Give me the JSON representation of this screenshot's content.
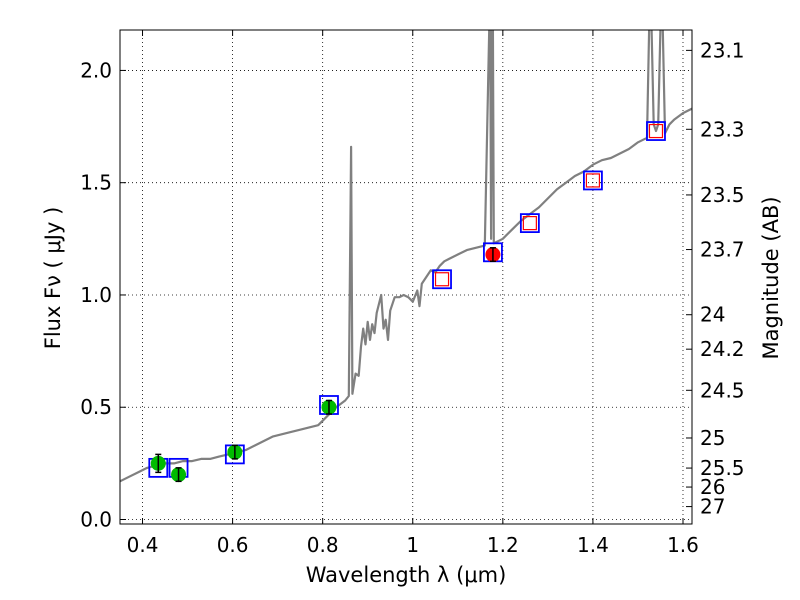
{
  "chart_data": {
    "type": "line",
    "title": "",
    "xlabel": "Wavelength  λ (μm)",
    "ylabel": "Flux  Fν  ( μJy )",
    "ylabel_right": "Magnitude (AB)",
    "xlim": [
      0.35,
      1.62
    ],
    "ylim": [
      -0.02,
      2.18
    ],
    "grid": true,
    "x_ticks": [
      {
        "value": 0.4,
        "label": "0.4"
      },
      {
        "value": 0.6,
        "label": "0.6"
      },
      {
        "value": 0.8,
        "label": "0.8"
      },
      {
        "value": 1.0,
        "label": "1"
      },
      {
        "value": 1.2,
        "label": "1.2"
      },
      {
        "value": 1.4,
        "label": "1.4"
      },
      {
        "value": 1.6,
        "label": "1.6"
      }
    ],
    "y_ticks": [
      {
        "value": 0.0,
        "label": "0.0"
      },
      {
        "value": 0.5,
        "label": "0.5"
      },
      {
        "value": 1.0,
        "label": "1.0"
      },
      {
        "value": 1.5,
        "label": "1.5"
      },
      {
        "value": 2.0,
        "label": "2.0"
      }
    ],
    "y_right_ticks": [
      {
        "value": 23.1,
        "label": "23.1"
      },
      {
        "value": 23.3,
        "label": "23.3"
      },
      {
        "value": 23.5,
        "label": "23.5"
      },
      {
        "value": 23.7,
        "label": "23.7"
      },
      {
        "value": 24,
        "label": "24"
      },
      {
        "value": 24.2,
        "label": "24.2"
      },
      {
        "value": 24.5,
        "label": "24.5"
      },
      {
        "value": 25,
        "label": "25"
      },
      {
        "value": 25.5,
        "label": "25.5"
      },
      {
        "value": 26,
        "label": "26"
      },
      {
        "value": 27,
        "label": "27"
      }
    ],
    "model_spectrum": {
      "name": "model SED",
      "color": "#808080",
      "x": [
        0.35,
        0.37,
        0.39,
        0.41,
        0.43,
        0.45,
        0.47,
        0.49,
        0.51,
        0.53,
        0.55,
        0.57,
        0.59,
        0.61,
        0.63,
        0.65,
        0.67,
        0.69,
        0.71,
        0.73,
        0.75,
        0.77,
        0.79,
        0.81,
        0.83,
        0.85,
        0.858,
        0.863,
        0.866,
        0.869,
        0.873,
        0.88,
        0.885,
        0.89,
        0.895,
        0.9,
        0.905,
        0.91,
        0.915,
        0.92,
        0.93,
        0.935,
        0.94,
        0.945,
        0.95,
        0.96,
        0.97,
        0.98,
        0.99,
        1.0,
        1.01,
        1.015,
        1.02,
        1.03,
        1.04,
        1.05,
        1.06,
        1.07,
        1.08,
        1.09,
        1.1,
        1.12,
        1.14,
        1.16,
        1.17,
        1.172,
        1.174,
        1.176,
        1.178,
        1.18,
        1.19,
        1.2,
        1.22,
        1.24,
        1.26,
        1.28,
        1.3,
        1.32,
        1.34,
        1.36,
        1.38,
        1.4,
        1.42,
        1.44,
        1.46,
        1.48,
        1.5,
        1.52,
        1.525,
        1.53,
        1.535,
        1.54,
        1.545,
        1.55,
        1.555,
        1.56,
        1.57,
        1.58,
        1.6,
        1.62
      ],
      "y": [
        0.17,
        0.19,
        0.21,
        0.23,
        0.24,
        0.25,
        0.25,
        0.26,
        0.26,
        0.27,
        0.27,
        0.28,
        0.29,
        0.3,
        0.31,
        0.33,
        0.35,
        0.37,
        0.38,
        0.39,
        0.4,
        0.41,
        0.42,
        0.46,
        0.5,
        0.53,
        0.55,
        1.66,
        0.56,
        0.6,
        0.65,
        0.64,
        0.77,
        0.85,
        0.78,
        0.88,
        0.8,
        0.87,
        0.83,
        0.92,
        1.0,
        0.85,
        0.89,
        0.8,
        0.93,
        0.99,
        0.99,
        1.0,
        0.99,
        0.97,
        1.02,
        0.95,
        1.05,
        1.08,
        1.11,
        1.1,
        1.13,
        1.15,
        1.16,
        1.17,
        1.18,
        1.2,
        1.21,
        1.22,
        2.2,
        2.2,
        1.25,
        2.2,
        2.2,
        1.23,
        1.24,
        1.25,
        1.29,
        1.33,
        1.36,
        1.39,
        1.43,
        1.47,
        1.5,
        1.53,
        1.55,
        1.58,
        1.6,
        1.61,
        1.63,
        1.65,
        1.68,
        1.7,
        2.2,
        2.2,
        1.76,
        1.73,
        1.76,
        2.2,
        2.2,
        1.72,
        1.76,
        1.78,
        1.81,
        1.83
      ]
    },
    "series": [
      {
        "name": "observed photometry (green)",
        "color": "#00bb00",
        "points": [
          {
            "x": 0.435,
            "y": 0.25,
            "err": 0.04
          },
          {
            "x": 0.48,
            "y": 0.2,
            "err": 0.03
          },
          {
            "x": 0.605,
            "y": 0.3,
            "err": 0.03
          },
          {
            "x": 0.814,
            "y": 0.5,
            "err": 0.03
          }
        ]
      },
      {
        "name": "observed photometry (red)",
        "color": "#ff0000",
        "points": [
          {
            "x": 1.178,
            "y": 1.18,
            "err": 0.03
          }
        ]
      },
      {
        "name": "model photometry",
        "color": "#0000ff",
        "points": [
          {
            "x": 0.435,
            "y": 0.23
          },
          {
            "x": 0.48,
            "y": 0.23
          },
          {
            "x": 0.605,
            "y": 0.29
          },
          {
            "x": 0.814,
            "y": 0.51
          },
          {
            "x": 1.065,
            "y": 1.07
          },
          {
            "x": 1.178,
            "y": 1.19
          },
          {
            "x": 1.26,
            "y": 1.32
          },
          {
            "x": 1.4,
            "y": 1.51
          },
          {
            "x": 1.54,
            "y": 1.73
          }
        ]
      },
      {
        "name": "upper limits (red open squares)",
        "color": "#ff0000",
        "points": [
          {
            "x": 1.065,
            "y": 1.07
          },
          {
            "x": 1.26,
            "y": 1.32
          },
          {
            "x": 1.4,
            "y": 1.51
          },
          {
            "x": 1.54,
            "y": 1.73
          }
        ]
      }
    ]
  }
}
